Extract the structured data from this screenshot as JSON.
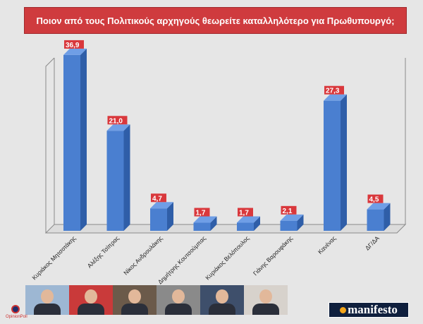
{
  "title": "Ποιον από τους Πολιτικούς αρχηγούς θεωρείτε καταλληλότερο για Πρωθυπουργό;",
  "chart_data": {
    "type": "bar",
    "title": "Ποιον από τους Πολιτικούς αρχηγούς θεωρείτε καταλληλότερο για Πρωθυπουργό;",
    "categories": [
      "Κυριάκος Μητσοτάκης",
      "Αλέξης Τσίπρας",
      "Νίκος Ανδρουλάκης",
      "Δημήτρης Κουτσούμπας",
      "Κυριάκος Βελόπουλος",
      "Γιάνης Βαρουφάκης",
      "Κανένας",
      "ΔΓ/ΔΑ"
    ],
    "values": [
      36.9,
      21.0,
      4.7,
      1.7,
      1.7,
      2.1,
      27.3,
      4.5
    ],
    "value_labels": [
      "36,9",
      "21,0",
      "4,7",
      "1,7",
      "1,7",
      "2,1",
      "27,3",
      "4,5"
    ],
    "ylim": [
      0,
      40
    ],
    "grid": false,
    "legend": "none",
    "colors": {
      "bar": "#4a7fd0",
      "bar_top": "#6f9ee6",
      "bar_side": "#2f5ea8",
      "label_bg": "#d9383c",
      "label_text": "#ffffff"
    }
  },
  "logos": {
    "left": "OpinionPoll",
    "right": "manifesto"
  },
  "photo_icons": [
    "portrait-icon",
    "portrait-icon",
    "portrait-icon",
    "portrait-icon",
    "portrait-icon",
    "portrait-icon"
  ]
}
